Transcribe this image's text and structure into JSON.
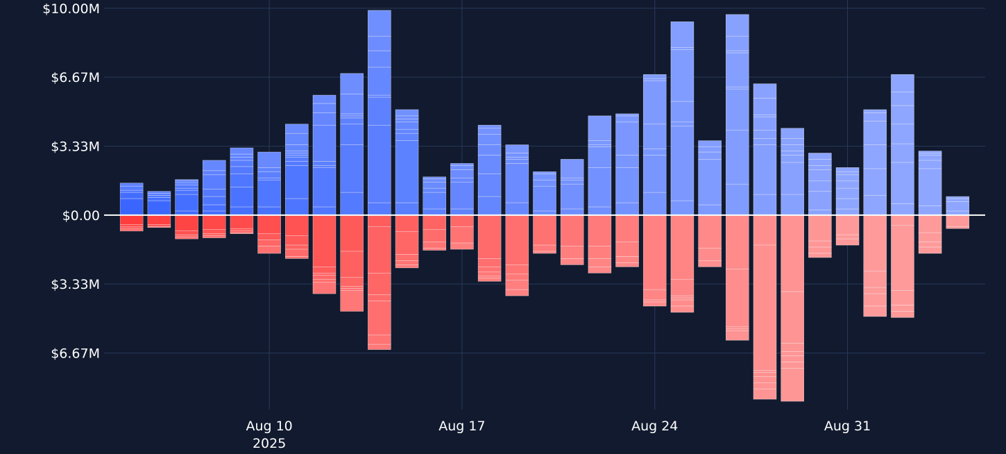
{
  "chart_data": {
    "type": "bar",
    "stacked": true,
    "diverging": true,
    "background": "#111a2e",
    "grid": true,
    "grid_color": "#2a3a5c",
    "zero_line_color": "#ffffff",
    "x_start_date": "2025-08-05",
    "x_axis_range": [
      "2025-08-04",
      "2025-09-05"
    ],
    "x_tick_labels": [
      {
        "date": "2025-08-10",
        "label": "Aug 10",
        "sublabel": "2025"
      },
      {
        "date": "2025-08-17",
        "label": "Aug 17",
        "sublabel": ""
      },
      {
        "date": "2025-08-24",
        "label": "Aug 24",
        "sublabel": ""
      },
      {
        "date": "2025-08-31",
        "label": "Aug 31",
        "sublabel": ""
      }
    ],
    "y_range": [
      -9.4,
      10.4
    ],
    "y_ticks": [
      {
        "value": 10.0,
        "label": "$10.00M"
      },
      {
        "value": 6.67,
        "label": "$6.67M"
      },
      {
        "value": 3.33,
        "label": "$3.33M"
      },
      {
        "value": 0.0,
        "label": "$0.00"
      },
      {
        "value": -3.33,
        "label": "$3.33M"
      },
      {
        "value": -6.67,
        "label": "$6.67M"
      }
    ],
    "positive_colors": {
      "dark": "#3a66ff",
      "light": "#8ea6ff"
    },
    "negative_colors": {
      "dark": "#ff3d3d",
      "light": "#ff9a9a"
    },
    "bars": [
      {
        "date": "2025-08-05",
        "pos": [
          0.8,
          0.3,
          0.1,
          0.2,
          0.15
        ],
        "neg": [
          0.45,
          0.12,
          0.1,
          0.1
        ]
      },
      {
        "date": "2025-08-06",
        "pos": [
          0.7,
          0.15,
          0.1,
          0.1,
          0.1
        ],
        "neg": [
          0.45,
          0.1,
          0.05
        ]
      },
      {
        "date": "2025-08-07",
        "pos": [
          0.2,
          0.8,
          0.2,
          0.1,
          0.15,
          0.12,
          0.1,
          0.05
        ],
        "neg": [
          0.75,
          0.2,
          0.1,
          0.1
        ]
      },
      {
        "date": "2025-08-08",
        "pos": [
          0.2,
          0.3,
          0.4,
          0.35,
          0.7,
          0.2,
          0.5
        ],
        "neg": [
          0.7,
          0.2,
          0.1,
          0.1
        ]
      },
      {
        "date": "2025-08-09",
        "pos": [
          0.4,
          0.95,
          0.65,
          0.35,
          0.3,
          0.15,
          0.15,
          0.3
        ],
        "neg": [
          0.65,
          0.1,
          0.1,
          0.05
        ]
      },
      {
        "date": "2025-08-10",
        "pos": [
          0.4,
          1.3,
          0.1,
          0.3,
          0.2,
          0.75
        ],
        "neg": [
          0.9,
          0.3,
          0.3,
          0.35
        ]
      },
      {
        "date": "2025-08-11",
        "pos": [
          0.8,
          1.6,
          0.2,
          0.2,
          0.1,
          0.1,
          0.1,
          0.3,
          0.55,
          0.45
        ],
        "neg": [
          1.0,
          0.45,
          0.2,
          0.35,
          0.1
        ]
      },
      {
        "date": "2025-08-12",
        "pos": [
          0.4,
          1.9,
          0.1,
          0.2,
          1.75,
          0.6,
          0.45,
          0.4
        ],
        "neg": [
          2.5,
          0.3,
          0.1,
          0.2,
          0.15,
          0.55
        ]
      },
      {
        "date": "2025-08-13",
        "pos": [
          1.1,
          2.3,
          1.0,
          0.3,
          0.1,
          0.1,
          0.95,
          1.0
        ],
        "neg": [
          1.75,
          1.25,
          0.45,
          0.1,
          0.1,
          1.0
        ]
      },
      {
        "date": "2025-08-14",
        "pos": [
          0.6,
          3.75,
          1.35,
          0.1,
          1.35,
          0.8,
          0.7,
          1.25
        ],
        "neg": [
          0.55,
          2.25,
          1.05,
          0.3,
          1.65,
          0.45,
          0.25
        ]
      },
      {
        "date": "2025-08-15",
        "pos": [
          0.6,
          3.0,
          0.35,
          0.2,
          0.35,
          0.15,
          0.15,
          0.3
        ],
        "neg": [
          0.8,
          1.1,
          0.3,
          0.2,
          0.15
        ]
      },
      {
        "date": "2025-08-16",
        "pos": [
          0.3,
          0.8,
          0.2,
          0.3,
          0.15,
          0.1
        ],
        "neg": [
          0.7,
          0.6,
          0.3,
          0.1
        ]
      },
      {
        "date": "2025-08-17",
        "pos": [
          0.3,
          1.3,
          0.2,
          0.4,
          0.2,
          0.1
        ],
        "neg": [
          0.55,
          0.8,
          0.3
        ]
      },
      {
        "date": "2025-08-18",
        "pos": [
          0.9,
          1.1,
          0.9,
          0.5,
          0.5,
          0.3,
          0.15
        ],
        "neg": [
          2.1,
          0.4,
          0.25,
          0.2,
          0.1,
          0.15
        ]
      },
      {
        "date": "2025-08-19",
        "pos": [
          0.6,
          1.9,
          0.2,
          0.1,
          0.2,
          0.4
        ],
        "neg": [
          2.4,
          0.45,
          0.3,
          0.45,
          0.3
        ]
      },
      {
        "date": "2025-08-20",
        "pos": [
          0.2,
          1.2,
          0.3,
          0.3,
          0.1
        ],
        "neg": [
          1.45,
          0.3,
          0.1
        ]
      },
      {
        "date": "2025-08-21",
        "pos": [
          0.3,
          1.2,
          0.2,
          0.1,
          0.9
        ],
        "neg": [
          1.5,
          0.6,
          0.3
        ]
      },
      {
        "date": "2025-08-22",
        "pos": [
          0.4,
          1.9,
          1.0,
          0.1,
          0.2,
          1.2
        ],
        "neg": [
          1.5,
          0.6,
          0.4,
          0.3
        ]
      },
      {
        "date": "2025-08-23",
        "pos": [
          0.6,
          1.7,
          0.6,
          1.6,
          0.3,
          0.1
        ],
        "neg": [
          1.3,
          0.7,
          0.3,
          0.2
        ]
      },
      {
        "date": "2025-08-24",
        "pos": [
          1.1,
          1.8,
          0.3,
          1.2,
          2.1,
          0.1,
          0.2
        ],
        "neg": [
          3.6,
          0.5,
          0.1,
          0.2
        ]
      },
      {
        "date": "2025-08-25",
        "pos": [
          0.7,
          3.6,
          0.2,
          1.0,
          2.5,
          0.1,
          1.25
        ],
        "neg": [
          3.1,
          0.8,
          0.1,
          0.1,
          0.3,
          0.3
        ]
      },
      {
        "date": "2025-08-26",
        "pos": [
          0.5,
          2.2,
          0.35,
          0.25,
          0.3
        ],
        "neg": [
          1.6,
          0.6,
          0.3
        ]
      },
      {
        "date": "2025-08-27",
        "pos": [
          1.5,
          2.6,
          2.0,
          0.1,
          1.65,
          0.1,
          0.7,
          1.05
        ],
        "neg": [
          2.6,
          2.8,
          0.1,
          0.1,
          0.45
        ]
      },
      {
        "date": "2025-08-28",
        "pos": [
          1.0,
          2.4,
          0.3,
          0.4,
          0.65,
          0.1,
          0.8,
          0.7
        ],
        "neg": [
          1.45,
          6.05,
          0.1,
          0.2,
          0.3,
          0.3,
          0.5
        ]
      },
      {
        "date": "2025-08-29",
        "pos": [
          1.0,
          1.55,
          0.35,
          0.2,
          0.3,
          0.3,
          0.5
        ],
        "neg": [
          3.7,
          2.5,
          0.4,
          0.2,
          0.3,
          0.3,
          1.6
        ]
      },
      {
        "date": "2025-08-30",
        "pos": [
          0.25,
          0.9,
          0.5,
          0.55,
          0.2,
          0.3,
          0.3
        ],
        "neg": [
          1.25,
          0.3,
          0.3,
          0.2
        ]
      },
      {
        "date": "2025-08-31",
        "pos": [
          0.3,
          0.5,
          0.5,
          0.35,
          0.3,
          0.15,
          0.2
        ],
        "neg": [
          0.95,
          0.2,
          0.3
        ]
      },
      {
        "date": "2025-09-01",
        "pos": [
          0.95,
          1.3,
          1.15,
          1.15,
          0.4,
          0.15
        ],
        "neg": [
          2.7,
          0.8,
          0.3,
          0.6,
          0.5
        ]
      },
      {
        "date": "2025-09-02",
        "pos": [
          0.55,
          2.0,
          0.9,
          0.95,
          0.9,
          0.65,
          0.85
        ],
        "neg": [
          0.5,
          3.15,
          0.7,
          0.3,
          0.3
        ]
      },
      {
        "date": "2025-09-03",
        "pos": [
          0.45,
          1.8,
          0.4,
          0.25,
          0.1,
          0.1
        ],
        "neg": [
          0.85,
          0.45,
          0.25,
          0.3
        ]
      },
      {
        "date": "2025-09-04",
        "pos": [
          0.2,
          0.45,
          0.15,
          0.1
        ],
        "neg": [
          0.55,
          0.1
        ]
      }
    ]
  }
}
